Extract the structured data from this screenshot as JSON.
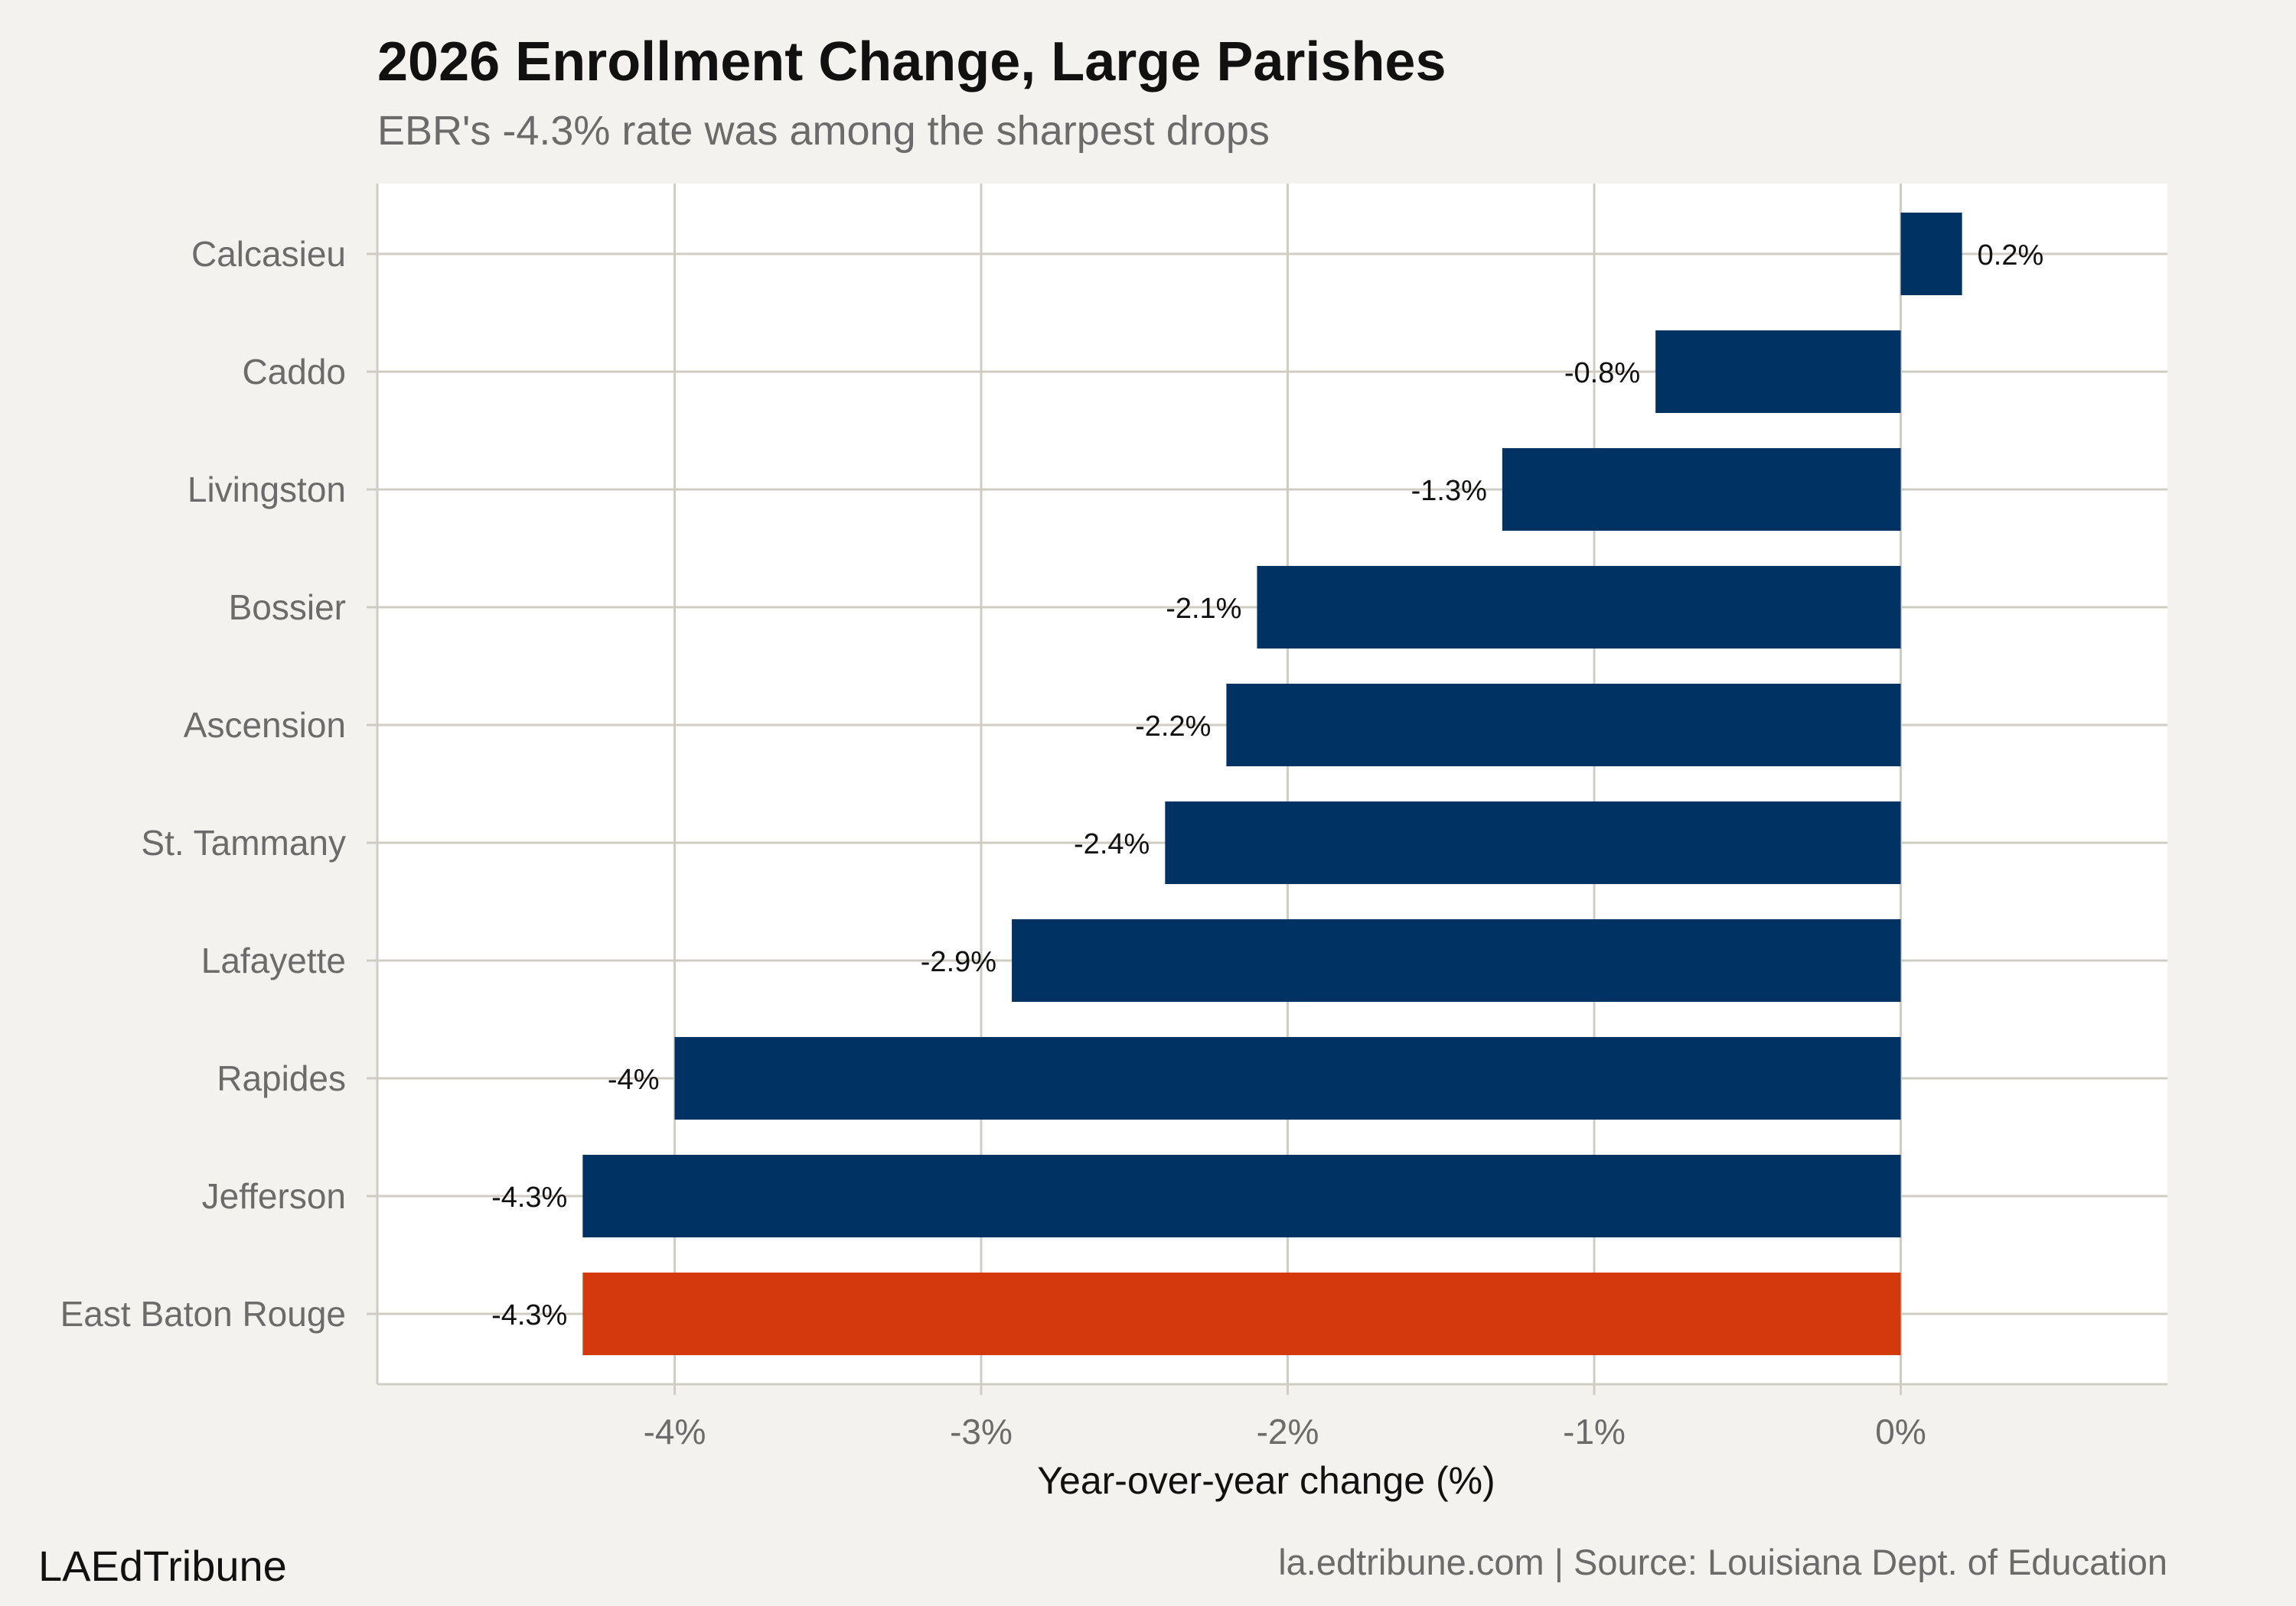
{
  "header": {
    "title": "2026 Enrollment Change, Large Parishes",
    "subtitle": "EBR's -4.3% rate was among the sharpest drops"
  },
  "footer": {
    "brand": "LAEdTribune",
    "source": "la.edtribune.com | Source: Louisiana Dept. of Education"
  },
  "colors": {
    "default_bar": "#003263",
    "highlight_bar": "#d4380d",
    "panel": "#ffffff",
    "grid": "#cfccc4"
  },
  "chart_data": {
    "type": "bar",
    "orientation": "horizontal",
    "title": "2026 Enrollment Change, Large Parishes",
    "subtitle": "EBR's -4.3% rate was among the sharpest drops",
    "xlabel": "Year-over-year change (%)",
    "ylabel": "",
    "categories": [
      "Calcasieu",
      "Caddo",
      "Livingston",
      "Bossier",
      "Ascension",
      "St. Tammany",
      "Lafayette",
      "Rapides",
      "Jefferson",
      "East Baton Rouge"
    ],
    "values": [
      0.2,
      -0.8,
      -1.3,
      -2.1,
      -2.2,
      -2.4,
      -2.9,
      -4.0,
      -4.3,
      -4.3
    ],
    "data_labels": [
      "0.2%",
      "-0.8%",
      "-1.3%",
      "-2.1%",
      "-2.2%",
      "-2.4%",
      "-2.9%",
      "-4%",
      "-4.3%",
      "-4.3%"
    ],
    "highlight": "East Baton Rouge",
    "xlim": [
      -4.97,
      0.87
    ],
    "xticks": [
      -4,
      -3,
      -2,
      -1,
      0
    ],
    "xtick_labels": [
      "-4%",
      "-3%",
      "-2%",
      "-1%",
      "0%"
    ],
    "grid": true,
    "legend": "none"
  }
}
